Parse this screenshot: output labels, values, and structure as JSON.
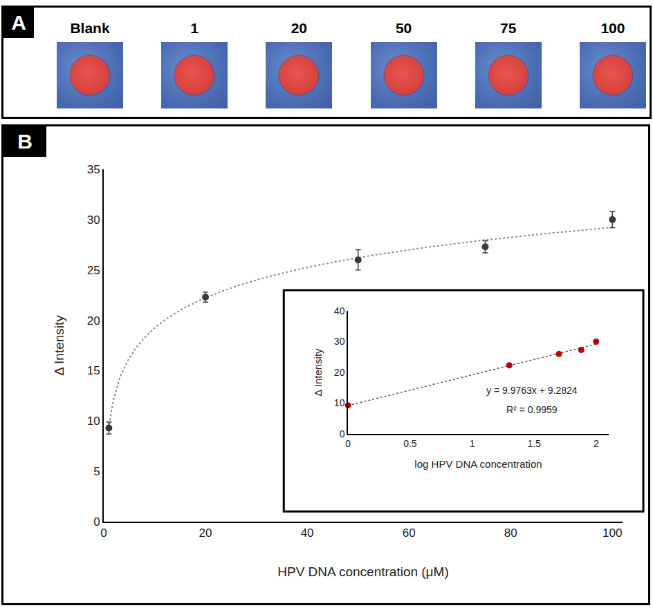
{
  "panel_a": {
    "letter": "A",
    "labels": [
      "Blank",
      "1",
      "20",
      "50",
      "75",
      "100"
    ]
  },
  "panel_b": {
    "letter": "B"
  },
  "chart_data": [
    {
      "type": "scatter",
      "x_label": "HPV DNA concentration (μM)",
      "y_label": "Δ Intensity",
      "x": [
        1,
        20,
        50,
        75,
        100
      ],
      "values": [
        9.3,
        22.3,
        26.0,
        27.3,
        30.0
      ],
      "error": [
        0.6,
        0.5,
        1.0,
        0.6,
        0.8
      ],
      "color": "#3a3a3a",
      "marker": "circle",
      "line_style": "dotted",
      "xlim": [
        0,
        102
      ],
      "xticks": [
        0,
        20,
        40,
        60,
        80,
        100
      ],
      "ylim": [
        0,
        35
      ],
      "yticks": [
        0,
        5,
        10,
        15,
        20,
        25,
        30,
        35
      ],
      "grid": false
    },
    {
      "type": "scatter",
      "x_label": "log HPV DNA concentration",
      "y_label": "Δ Intensity",
      "x": [
        0,
        1.3,
        1.7,
        1.88,
        2.0
      ],
      "values": [
        9.3,
        22.3,
        26.0,
        27.3,
        30.0
      ],
      "color": "#c00000",
      "marker": "circle",
      "line_style": "dotted",
      "xlim": [
        0,
        2.1
      ],
      "xticks": [
        0,
        0.5,
        1,
        1.5,
        2
      ],
      "ylim": [
        0,
        40
      ],
      "yticks": [
        0,
        10,
        20,
        30,
        40
      ],
      "grid": false,
      "annotations": [
        "y = 9.9763x + 9.2824",
        "R² = 0.9959"
      ]
    }
  ]
}
